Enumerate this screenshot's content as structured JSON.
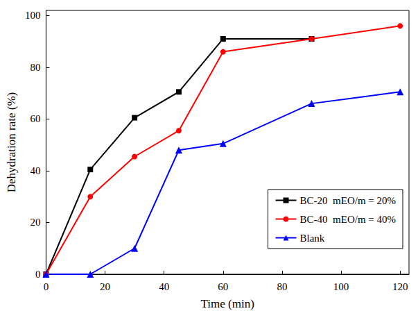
{
  "chart_data": {
    "type": "line",
    "x_label": "Time (min)",
    "y_label": "Dehydration rate (%)",
    "xlim": [
      0,
      123
    ],
    "xticks": [
      0,
      20,
      40,
      60,
      80,
      100,
      120
    ],
    "ylim": [
      0,
      102
    ],
    "yticks": [
      0,
      20,
      40,
      60,
      80,
      100
    ],
    "grid": false,
    "legend": "lower right",
    "series": [
      {
        "name": "BC-20  mEO/m = 20%",
        "color": "#000000",
        "marker": "square",
        "x": [
          0,
          15,
          30,
          45,
          60,
          90
        ],
        "values": [
          0,
          40.5,
          60.5,
          70.5,
          91,
          91
        ]
      },
      {
        "name": "BC-40  mEO/m = 40%",
        "color": "#ff0000",
        "marker": "circle",
        "x": [
          0,
          15,
          30,
          45,
          60,
          90,
          120
        ],
        "values": [
          0,
          30,
          45.5,
          55.5,
          86,
          91,
          96
        ]
      },
      {
        "name": "Blank",
        "color": "#0000ff",
        "marker": "triangle",
        "x": [
          0,
          15,
          30,
          45,
          60,
          90,
          120
        ],
        "values": [
          0,
          0,
          10,
          48,
          50.5,
          66,
          70.5
        ]
      }
    ]
  }
}
